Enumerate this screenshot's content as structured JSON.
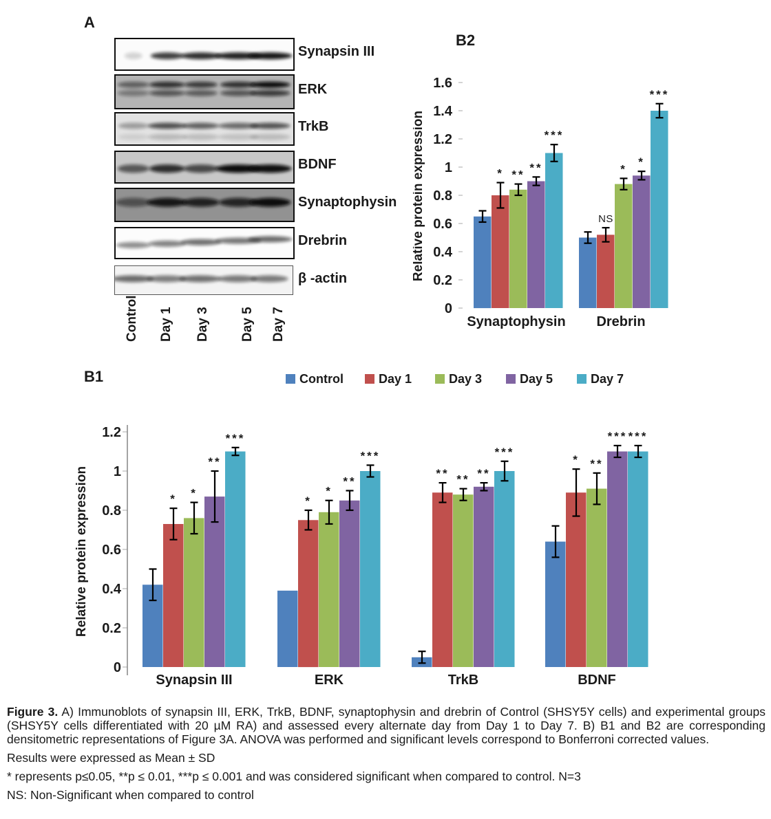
{
  "panel_a": {
    "label": "A",
    "lane_labels": [
      "Control",
      "Day 1",
      "Day 3",
      "Day 5",
      "Day 7"
    ],
    "lane_fractions": [
      0.1,
      0.29,
      0.48,
      0.69,
      0.87
    ],
    "blots": [
      {
        "label": "Synapsin III",
        "bg": "#fbfbfb",
        "rows": [
          [
            0.55,
            1
          ]
        ],
        "intensities": [
          0.16,
          0.78,
          0.85,
          0.9,
          0.95
        ],
        "widths": [
          26,
          48,
          58,
          66,
          64
        ],
        "thickness": 10,
        "tilt": 0
      },
      {
        "label": "ERK",
        "bg": "#b4b4b4",
        "rows": [
          [
            0.28,
            1
          ],
          [
            0.54,
            0.72
          ]
        ],
        "intensities": [
          0.5,
          0.78,
          0.72,
          0.78,
          1.0
        ],
        "widths": [
          46,
          52,
          48,
          52,
          58
        ],
        "thickness": 9,
        "tilt": 0
      },
      {
        "label": "TrkB",
        "bg": "#e2e2e2",
        "rows": [
          [
            0.4,
            1
          ],
          [
            0.76,
            0.28
          ]
        ],
        "intensities": [
          0.32,
          0.68,
          0.6,
          0.55,
          0.66
        ],
        "widths": [
          44,
          56,
          52,
          58,
          58
        ],
        "thickness": 9,
        "tilt": 0
      },
      {
        "label": "BDNF",
        "bg": "#c8c8c8",
        "rows": [
          [
            0.55,
            1
          ]
        ],
        "intensities": [
          0.6,
          0.82,
          0.68,
          1.0,
          0.98
        ],
        "widths": [
          46,
          52,
          50,
          66,
          62
        ],
        "thickness": 12,
        "tilt": 0
      },
      {
        "label": "Synaptophysin",
        "bg": "#929292",
        "rows": [
          [
            0.42,
            1
          ]
        ],
        "intensities": [
          0.5,
          0.92,
          0.85,
          0.82,
          1.0
        ],
        "widths": [
          52,
          58,
          54,
          56,
          60
        ],
        "thickness": 13,
        "tilt": 0
      },
      {
        "label": "Drebrin",
        "bg": "#fcfcfc",
        "rows": [
          [
            0.52,
            1
          ]
        ],
        "intensities": [
          0.45,
          0.5,
          0.58,
          0.55,
          0.6
        ],
        "widths": [
          50,
          54,
          58,
          66,
          64
        ],
        "thickness": 9,
        "tilt": -0.05
      },
      {
        "label": "β -actin",
        "bg": "#f3f3f3",
        "rows": [
          [
            0.45,
            1
          ]
        ],
        "intensities": [
          0.58,
          0.5,
          0.56,
          0.52,
          0.52
        ],
        "widths": [
          60,
          56,
          60,
          56,
          54
        ],
        "thickness": 10,
        "tilt": 0
      }
    ]
  },
  "legend": {
    "items": [
      {
        "label": "Control",
        "color": "#4F81BD"
      },
      {
        "label": "Day 1",
        "color": "#C0504D"
      },
      {
        "label": "Day 3",
        "color": "#9BBB59"
      },
      {
        "label": "Day 5",
        "color": "#8064A2"
      },
      {
        "label": "Day 7",
        "color": "#4BACC6"
      }
    ]
  },
  "chart_data": [
    {
      "id": "b2",
      "type": "bar",
      "panel_label": "B2",
      "title": "",
      "xlabel": "",
      "ylabel": "Relative protein expression",
      "ylim": [
        0,
        1.6
      ],
      "ytick_step": 0.2,
      "grid": false,
      "legend_position": "none",
      "categories": [
        "Synaptophysin",
        "Drebrin"
      ],
      "series": [
        {
          "name": "Control",
          "color": "#4F81BD",
          "values": [
            0.65,
            0.5
          ],
          "errors": [
            0.04,
            0.04
          ],
          "sig": [
            "",
            ""
          ]
        },
        {
          "name": "Day 1",
          "color": "#C0504D",
          "values": [
            0.8,
            0.52
          ],
          "errors": [
            0.09,
            0.05
          ],
          "sig": [
            "*",
            "NS"
          ]
        },
        {
          "name": "Day 3",
          "color": "#9BBB59",
          "values": [
            0.84,
            0.88
          ],
          "errors": [
            0.04,
            0.04
          ],
          "sig": [
            "**",
            "*"
          ]
        },
        {
          "name": "Day 5",
          "color": "#8064A2",
          "values": [
            0.9,
            0.94
          ],
          "errors": [
            0.03,
            0.03
          ],
          "sig": [
            "**",
            "*"
          ]
        },
        {
          "name": "Day 7",
          "color": "#4BACC6",
          "values": [
            1.1,
            1.4
          ],
          "errors": [
            0.06,
            0.05
          ],
          "sig": [
            "***",
            "***"
          ]
        }
      ]
    },
    {
      "id": "b1",
      "type": "bar",
      "panel_label": "B1",
      "title": "",
      "xlabel": "",
      "ylabel": "Relative protein expression",
      "ylim": [
        0,
        1.2
      ],
      "ytick_step": 0.2,
      "grid": false,
      "legend_position": "top",
      "categories": [
        "Synapsin III",
        "ERK",
        "TrkB",
        "BDNF"
      ],
      "series": [
        {
          "name": "Control",
          "color": "#4F81BD",
          "values": [
            0.42,
            0.39,
            0.05,
            0.64
          ],
          "errors": [
            0.08,
            0,
            0.03,
            0.08
          ],
          "sig": [
            "",
            "",
            "",
            ""
          ]
        },
        {
          "name": "Day 1",
          "color": "#C0504D",
          "values": [
            0.73,
            0.75,
            0.89,
            0.89
          ],
          "errors": [
            0.08,
            0.05,
            0.05,
            0.12
          ],
          "sig": [
            "*",
            "*",
            "**",
            "*"
          ]
        },
        {
          "name": "Day 3",
          "color": "#9BBB59",
          "values": [
            0.76,
            0.79,
            0.88,
            0.91
          ],
          "errors": [
            0.08,
            0.06,
            0.03,
            0.08
          ],
          "sig": [
            "*",
            "*",
            "**",
            "**"
          ]
        },
        {
          "name": "Day 5",
          "color": "#8064A2",
          "values": [
            0.87,
            0.85,
            0.92,
            1.1
          ],
          "errors": [
            0.13,
            0.05,
            0.02,
            0.03
          ],
          "sig": [
            "**",
            "**",
            "**",
            "***"
          ]
        },
        {
          "name": "Day 7",
          "color": "#4BACC6",
          "values": [
            1.1,
            1.0,
            1.0,
            1.1
          ],
          "errors": [
            0.02,
            0.03,
            0.05,
            0.03
          ],
          "sig": [
            "***",
            "***",
            "***",
            "***"
          ]
        }
      ]
    }
  ],
  "caption": {
    "prefix": "Figure 3.",
    "body": " A) Immunoblots of synapsin III, ERK, TrkB, BDNF, synaptophysin and drebrin of Control (SHSY5Y cells) and experimental groups (SHSY5Y cells differentiated with 20 µM RA) and assessed every alternate day from Day 1 to Day 7. B) B1 and B2 are corresponding densitometric representations of Figure 3A. ANOVA was performed and significant levels correspond to Bonferroni corrected values.",
    "line_mean_sd": "Results were expressed as Mean ± SD",
    "line_sig": "* represents p≤0.05, **p ≤ 0.01, ***p ≤ 0.001 and was considered significant when compared to control. N=3",
    "line_ns": "NS: Non-Significant when compared to control"
  }
}
